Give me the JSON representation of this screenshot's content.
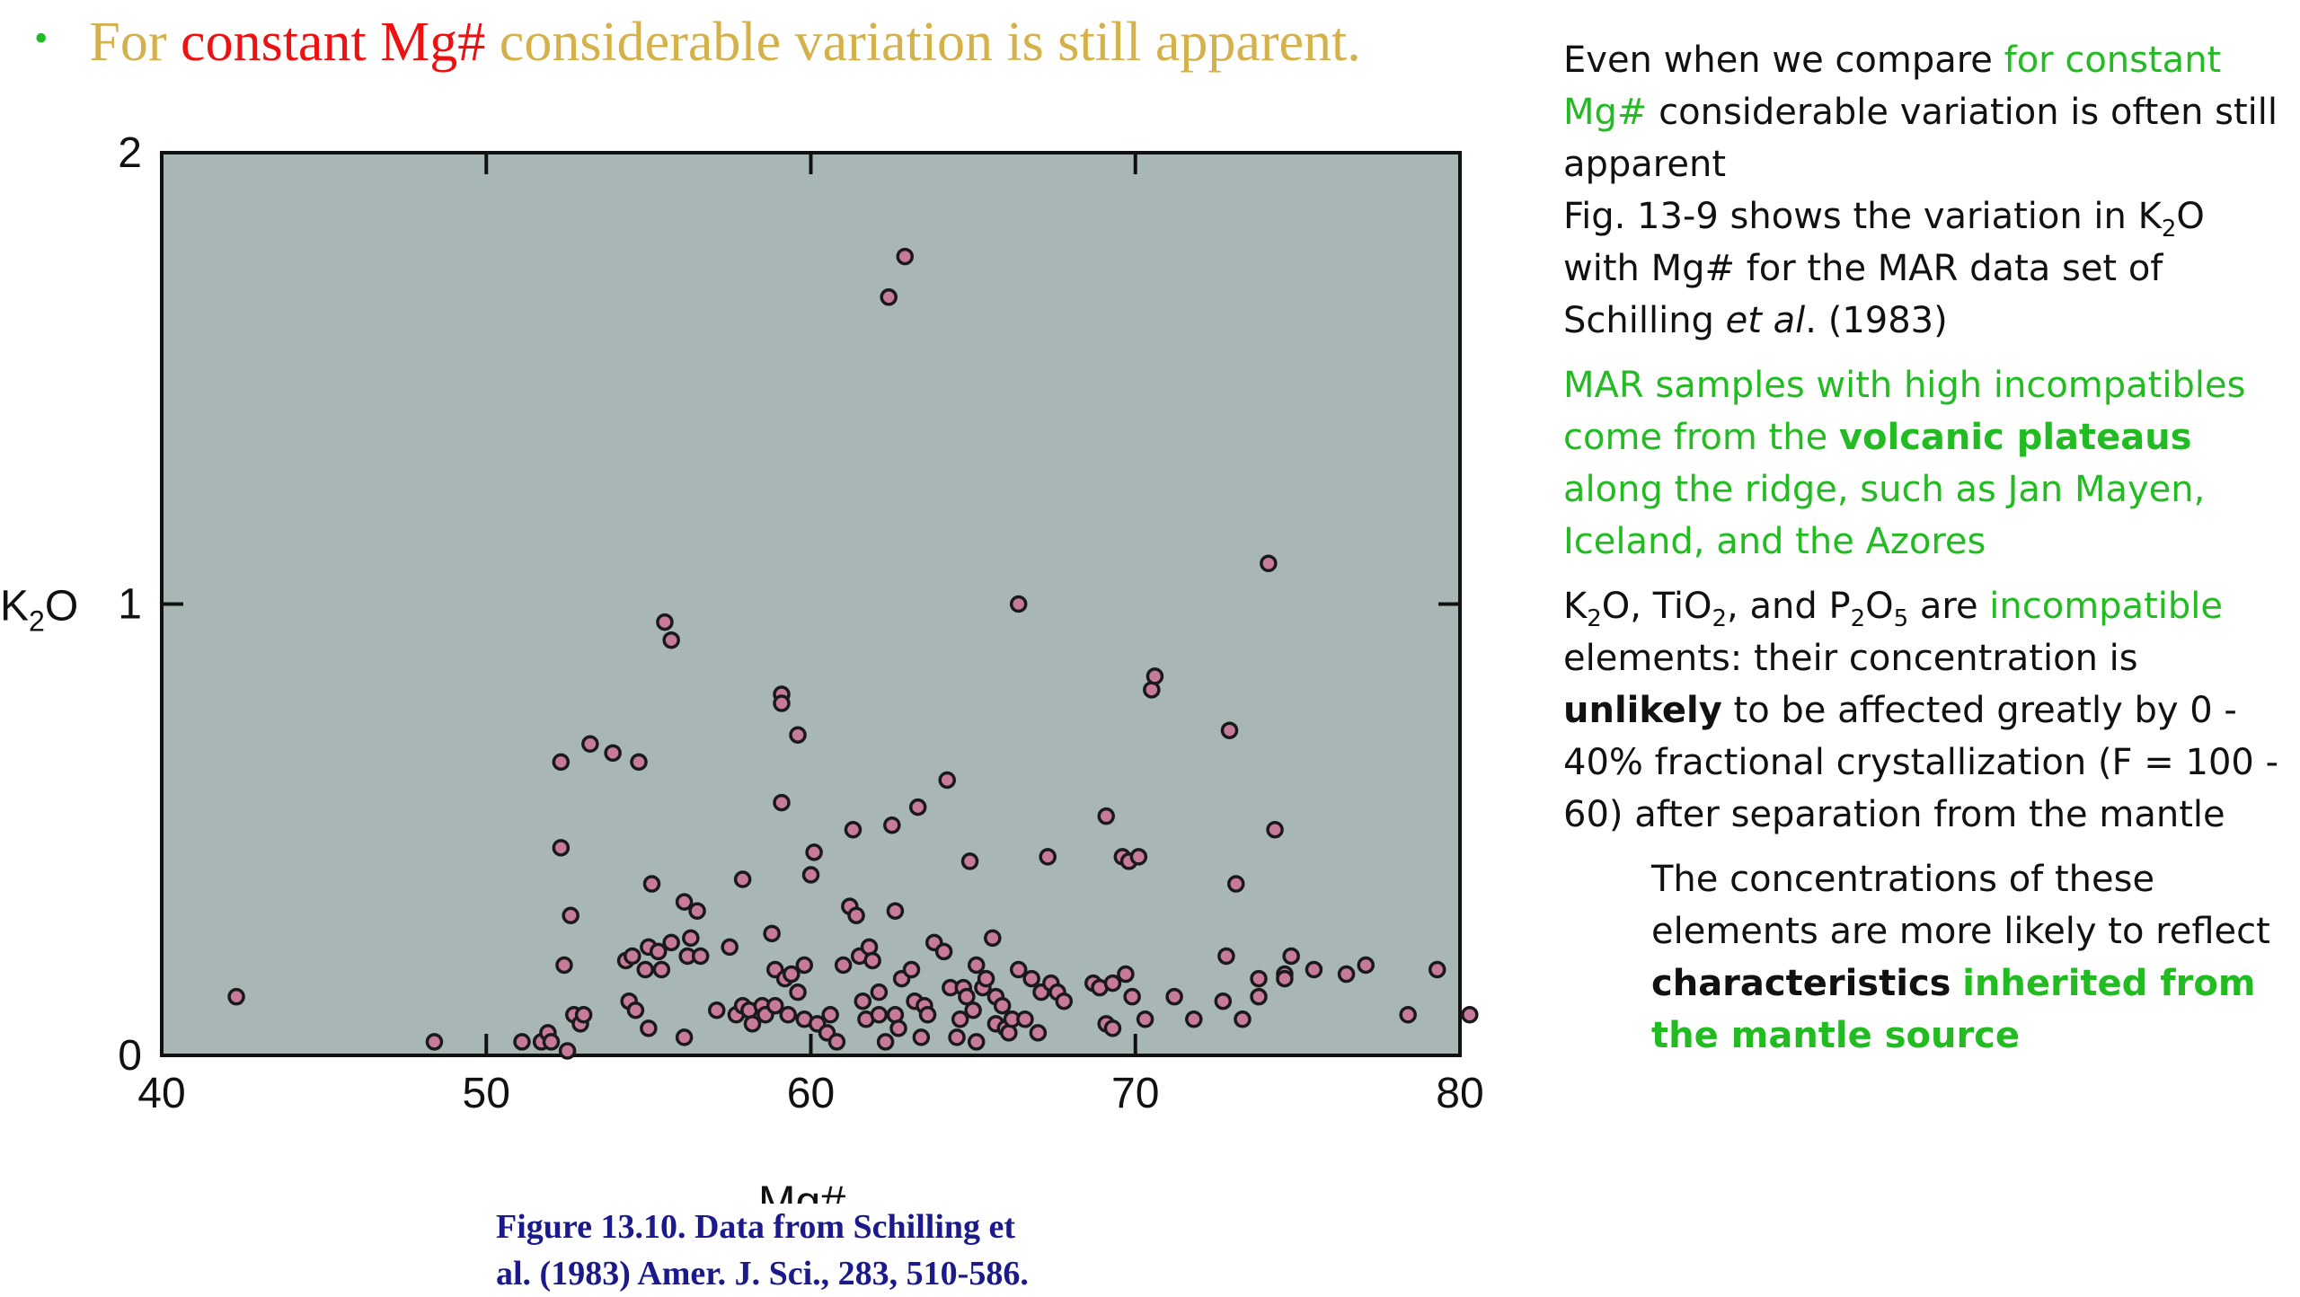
{
  "heading": {
    "bullet": "•",
    "part1": "For ",
    "part2": "constant Mg#",
    "part3": " considerable variation is still apparent."
  },
  "caption": {
    "line1": "Figure 13.10. Data from Schilling et",
    "line2": "al. (1983) Amer. J. Sci., 283, 510-586."
  },
  "notes": {
    "p1": {
      "a": "Even when we compare ",
      "b": "for constant Mg#",
      "c": " considerable variation is often still apparent",
      "d": "Fig. 13-9 shows the variation in K",
      "d_sub": "2",
      "e": "O with Mg# for the MAR data set of Schilling ",
      "f": "et al",
      "g": ". (1983)"
    },
    "p2": {
      "a": "MAR samples with high incompatibles come from the ",
      "b": "volcanic plateaus",
      "c": " along the ridge, such as Jan Mayen, Iceland, and the Azores"
    },
    "p3": {
      "k": "K",
      "k_sub": "2",
      "o1": "O, TiO",
      "ti_sub": "2",
      "and": ", and P",
      "p_sub": "2",
      "o5": "O",
      "o5_sub": "5",
      "are": " are ",
      "inc": "incompatible",
      "b": " elements: their concentration is ",
      "c": "unlikely",
      "d": " to be affected greatly by 0 - 40% fractional crystallization (F = 100 - 60) after separation from the mantle"
    },
    "p4": {
      "a": "The concentrations of these elements are more likely to reflect ",
      "b": "characteristics",
      "c": " ",
      "d": "inherited from the mantle source"
    }
  },
  "colors": {
    "plot_bg": "#a9b6b6",
    "marker_fill": "#c77a9a",
    "marker_edge": "#1a1a1a",
    "heading_gold": "#d4b14a",
    "heading_red": "#ee1111",
    "accent_green": "#22bb22",
    "caption_blue": "#1a1a8a"
  },
  "chart_data": {
    "type": "scatter",
    "title": "",
    "xlabel": "Mg#",
    "ylabel": "K2O",
    "xlim": [
      40,
      80
    ],
    "ylim": [
      0,
      2
    ],
    "xticks": [
      40,
      50,
      60,
      70,
      80
    ],
    "yticks": [
      0,
      1,
      2
    ],
    "xtick_labels": [
      "40",
      "50",
      "60",
      "70",
      "80"
    ],
    "ytick_labels": [
      "0",
      "1",
      "2"
    ],
    "grid": false,
    "legend": "none",
    "points": [
      [
        42.3,
        0.13
      ],
      [
        48.4,
        0.03
      ],
      [
        51.1,
        0.03
      ],
      [
        51.7,
        0.03
      ],
      [
        51.9,
        0.05
      ],
      [
        52.0,
        0.03
      ],
      [
        52.3,
        0.65
      ],
      [
        52.3,
        0.46
      ],
      [
        52.4,
        0.2
      ],
      [
        52.5,
        0.01
      ],
      [
        52.6,
        0.31
      ],
      [
        52.7,
        0.09
      ],
      [
        52.9,
        0.07
      ],
      [
        53.0,
        0.09
      ],
      [
        53.2,
        0.69
      ],
      [
        53.9,
        0.67
      ],
      [
        54.3,
        0.21
      ],
      [
        54.4,
        0.12
      ],
      [
        54.5,
        0.22
      ],
      [
        54.6,
        0.1
      ],
      [
        54.7,
        0.65
      ],
      [
        54.9,
        0.19
      ],
      [
        55.0,
        0.24
      ],
      [
        55.0,
        0.06
      ],
      [
        55.1,
        0.38
      ],
      [
        55.3,
        0.23
      ],
      [
        55.4,
        0.19
      ],
      [
        55.5,
        0.96
      ],
      [
        55.7,
        0.25
      ],
      [
        55.7,
        0.92
      ],
      [
        56.1,
        0.34
      ],
      [
        56.1,
        0.04
      ],
      [
        56.2,
        0.22
      ],
      [
        56.3,
        0.26
      ],
      [
        56.5,
        0.32
      ],
      [
        56.6,
        0.22
      ],
      [
        57.1,
        0.1
      ],
      [
        57.5,
        0.24
      ],
      [
        57.7,
        0.09
      ],
      [
        57.9,
        0.11
      ],
      [
        57.9,
        0.39
      ],
      [
        58.1,
        0.1
      ],
      [
        58.2,
        0.07
      ],
      [
        58.5,
        0.11
      ],
      [
        58.6,
        0.09
      ],
      [
        58.8,
        0.27
      ],
      [
        58.9,
        0.19
      ],
      [
        58.9,
        0.11
      ],
      [
        59.1,
        0.8
      ],
      [
        59.1,
        0.78
      ],
      [
        59.1,
        0.56
      ],
      [
        59.2,
        0.17
      ],
      [
        59.3,
        0.09
      ],
      [
        59.4,
        0.18
      ],
      [
        59.6,
        0.71
      ],
      [
        59.6,
        0.14
      ],
      [
        59.8,
        0.2
      ],
      [
        59.8,
        0.08
      ],
      [
        60.0,
        0.4
      ],
      [
        60.1,
        0.45
      ],
      [
        60.2,
        0.07
      ],
      [
        60.5,
        0.05
      ],
      [
        60.6,
        0.09
      ],
      [
        60.8,
        0.03
      ],
      [
        61.0,
        0.2
      ],
      [
        61.2,
        0.33
      ],
      [
        61.3,
        0.5
      ],
      [
        61.4,
        0.31
      ],
      [
        61.5,
        0.22
      ],
      [
        61.6,
        0.12
      ],
      [
        61.7,
        0.08
      ],
      [
        61.8,
        0.24
      ],
      [
        61.9,
        0.21
      ],
      [
        62.1,
        0.09
      ],
      [
        62.1,
        0.14
      ],
      [
        62.3,
        0.03
      ],
      [
        62.4,
        1.68
      ],
      [
        62.5,
        0.51
      ],
      [
        62.6,
        0.32
      ],
      [
        62.6,
        0.09
      ],
      [
        62.7,
        0.06
      ],
      [
        62.8,
        0.17
      ],
      [
        62.9,
        1.77
      ],
      [
        63.1,
        0.19
      ],
      [
        63.2,
        0.12
      ],
      [
        63.3,
        0.55
      ],
      [
        63.4,
        0.04
      ],
      [
        63.5,
        0.11
      ],
      [
        63.6,
        0.09
      ],
      [
        63.8,
        0.25
      ],
      [
        64.1,
        0.23
      ],
      [
        64.2,
        0.61
      ],
      [
        64.3,
        0.15
      ],
      [
        64.5,
        0.04
      ],
      [
        64.6,
        0.08
      ],
      [
        64.7,
        0.15
      ],
      [
        64.8,
        0.13
      ],
      [
        64.9,
        0.43
      ],
      [
        65.0,
        0.1
      ],
      [
        65.1,
        0.2
      ],
      [
        65.1,
        0.03
      ],
      [
        65.3,
        0.15
      ],
      [
        65.4,
        0.17
      ],
      [
        65.6,
        0.26
      ],
      [
        65.7,
        0.07
      ],
      [
        65.7,
        0.13
      ],
      [
        65.9,
        0.11
      ],
      [
        66.0,
        0.06
      ],
      [
        66.1,
        0.05
      ],
      [
        66.2,
        0.08
      ],
      [
        66.4,
        0.19
      ],
      [
        66.4,
        1.0
      ],
      [
        66.6,
        0.08
      ],
      [
        66.8,
        0.17
      ],
      [
        67.0,
        0.05
      ],
      [
        67.1,
        0.14
      ],
      [
        67.3,
        0.44
      ],
      [
        67.4,
        0.16
      ],
      [
        67.6,
        0.14
      ],
      [
        67.8,
        0.12
      ],
      [
        68.7,
        0.16
      ],
      [
        68.9,
        0.15
      ],
      [
        69.1,
        0.53
      ],
      [
        69.1,
        0.07
      ],
      [
        69.3,
        0.16
      ],
      [
        69.3,
        0.06
      ],
      [
        69.6,
        0.44
      ],
      [
        69.7,
        0.18
      ],
      [
        69.8,
        0.43
      ],
      [
        69.9,
        0.13
      ],
      [
        70.1,
        0.44
      ],
      [
        70.3,
        0.08
      ],
      [
        70.5,
        0.81
      ],
      [
        70.6,
        0.84
      ],
      [
        71.2,
        0.13
      ],
      [
        71.8,
        0.08
      ],
      [
        72.7,
        0.12
      ],
      [
        72.8,
        0.22
      ],
      [
        72.9,
        0.72
      ],
      [
        73.1,
        0.38
      ],
      [
        73.3,
        0.08
      ],
      [
        73.8,
        0.13
      ],
      [
        73.8,
        0.17
      ],
      [
        74.1,
        1.09
      ],
      [
        74.3,
        0.5
      ],
      [
        74.6,
        0.18
      ],
      [
        74.6,
        0.17
      ],
      [
        74.8,
        0.22
      ],
      [
        75.5,
        0.19
      ],
      [
        76.5,
        0.18
      ],
      [
        77.1,
        0.2
      ],
      [
        78.4,
        0.09
      ],
      [
        79.3,
        0.19
      ],
      [
        80.3,
        0.09
      ]
    ]
  }
}
